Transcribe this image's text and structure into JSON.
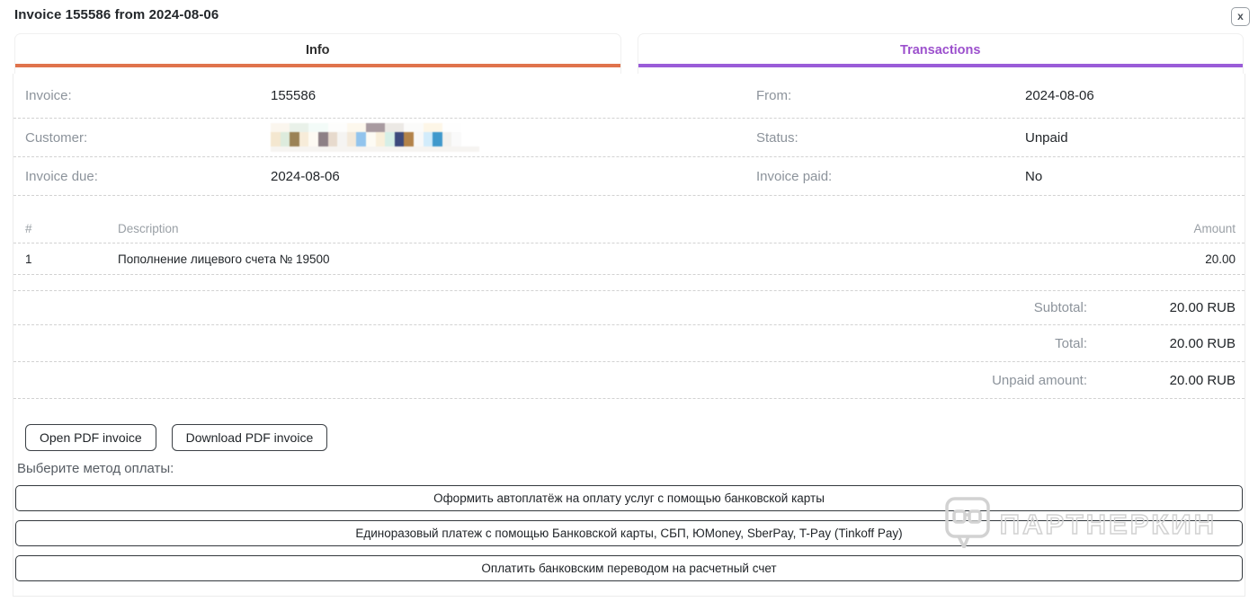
{
  "window": {
    "title": "Invoice 155586 from 2024-08-06",
    "close_label": "x"
  },
  "tabs": [
    {
      "label": "Info",
      "active": true,
      "accent": "#e0734c"
    },
    {
      "label": "Transactions",
      "active": false,
      "accent": "#9a5cd8",
      "text_color": "#9c50cd"
    }
  ],
  "fields": {
    "left": [
      {
        "label": "Invoice:",
        "value": "155586"
      },
      {
        "label": "Customer:",
        "value": ""
      },
      {
        "label": "Invoice due:",
        "value": "2024-08-06"
      }
    ],
    "right": [
      {
        "label": "From:",
        "value": "2024-08-06"
      },
      {
        "label": "Status:",
        "value": "Unpaid"
      },
      {
        "label": "Invoice paid:",
        "value": "No"
      }
    ]
  },
  "customer_mosaic": {
    "rows": [
      [
        "#fbf6ee",
        "#e9f1e9",
        "#f3fbf8",
        "#fdfdfc",
        "#fdf8ed",
        "#a89aa0",
        "#ece9e5",
        "#fbfbfa",
        "#fdf6e7",
        "#fefefe"
      ],
      [
        "#f4e7d0",
        "#ddebdd",
        "#9b8256",
        "#f7ecd9",
        "#fdfaf3",
        "#8d8086",
        "#e7dacd",
        "#f5f4f2",
        "#f3e9da",
        "#92c4ed",
        "#fdfbf4",
        "#f9efda",
        "#d6efe7",
        "#3d4a7d",
        "#b3834a",
        "#f8f8f8",
        "#d2ecfb",
        "#4099cc",
        "#f3f1ee",
        "#fafafa"
      ]
    ]
  },
  "items_table": {
    "headers": {
      "index": "#",
      "description": "Description",
      "amount": "Amount"
    },
    "rows": [
      {
        "index": "1",
        "description": "Пополнение лицевого счета № 19500",
        "amount": "20.00"
      }
    ],
    "totals": [
      {
        "label": "Subtotal:",
        "value": "20.00 RUB"
      },
      {
        "label": "Total:",
        "value": "20.00 RUB"
      },
      {
        "label": "Unpaid amount:",
        "value": "20.00 RUB"
      }
    ]
  },
  "pdf_actions": [
    {
      "label": "Open PDF invoice"
    },
    {
      "label": "Download PDF invoice"
    }
  ],
  "payment": {
    "prompt": "Выберите метод оплаты:",
    "methods": [
      {
        "label": "Оформить автоплатёж на оплату услуг с помощью банковской карты"
      },
      {
        "label": "Единоразовый платеж с помощью Банковской карты, СБП, ЮMoney, SberPay, T-Pay (Tinkoff Pay)"
      },
      {
        "label": "Оплатить банковским переводом на расчетный счет"
      }
    ]
  },
  "watermark": {
    "text": "ПАРТНЕРКИН"
  },
  "colors": {
    "info_accent": "#e0734c",
    "transactions_accent": "#9a5cd8",
    "transactions_text": "#9c50cd",
    "label_gray": "#8c939b",
    "dashed_divider": "#d2d2d2",
    "value_text": "#212529"
  }
}
